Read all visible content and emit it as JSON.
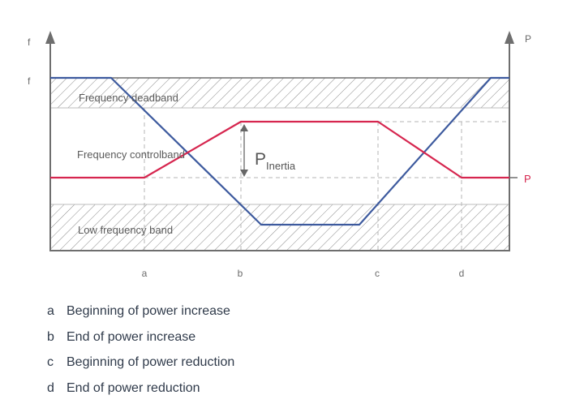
{
  "axes": {
    "left_axis_label": "f",
    "left_level_label": "f",
    "right_axis_label": "P",
    "right_level_label": "P"
  },
  "bands": {
    "deadband_label": "Frequency deadband",
    "controlband_label": "Frequency controlband",
    "low_band_label": "Low frequency band"
  },
  "annotation": {
    "p_inertia_main": "P",
    "p_inertia_sub": "Inertia"
  },
  "ticks": [
    "a",
    "b",
    "c",
    "d"
  ],
  "legend": [
    {
      "key": "a",
      "text": "Beginning of power increase"
    },
    {
      "key": "b",
      "text": "End of power increase"
    },
    {
      "key": "c",
      "text": "Beginning of power reduction"
    },
    {
      "key": "d",
      "text": "End of power reduction"
    }
  ],
  "colors": {
    "frequency_line": "#3d5a9e",
    "power_line": "#d6264f",
    "axis": "#6e6e6e",
    "hatch": "#8a8a8a"
  }
}
